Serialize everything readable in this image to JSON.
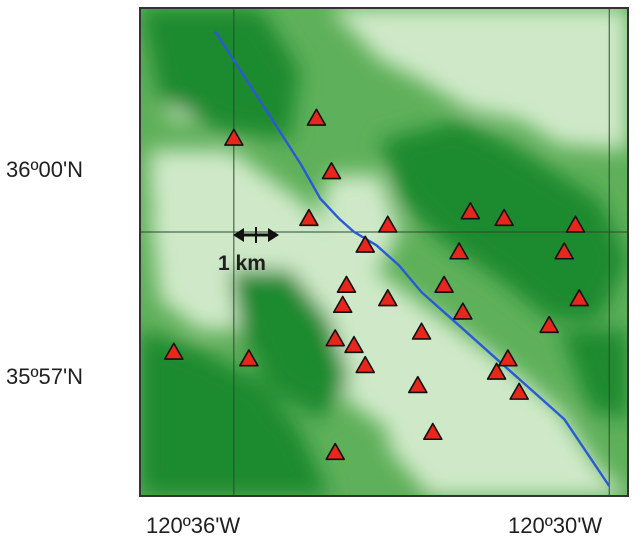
{
  "labels": {
    "lat_north": "36º00'N",
    "lat_south": "35º57'N",
    "lon_west": "120º36'W",
    "lon_east": "120º30'W",
    "scale": "1 km"
  },
  "colors": {
    "terrain_dark": "#1e8a2e",
    "terrain_mid": "#5fb05a",
    "terrain_light": "#cfe9c8",
    "fault": "#2a5ad6",
    "station_fill": "#e8261c",
    "station_stroke": "#111111",
    "grid": "#2c4a30"
  },
  "stations": [
    {
      "lon": -120.6,
      "lat": 36.014
    },
    {
      "lon": -120.578,
      "lat": 36.017
    },
    {
      "lon": -120.574,
      "lat": 36.009
    },
    {
      "lon": -120.58,
      "lat": 36.002
    },
    {
      "lon": -120.559,
      "lat": 36.001
    },
    {
      "lon": -120.565,
      "lat": 35.998
    },
    {
      "lon": -120.537,
      "lat": 36.003
    },
    {
      "lon": -120.528,
      "lat": 36.002
    },
    {
      "lon": -120.509,
      "lat": 36.001
    },
    {
      "lon": -120.54,
      "lat": 35.997
    },
    {
      "lon": -120.512,
      "lat": 35.997
    },
    {
      "lon": -120.57,
      "lat": 35.992
    },
    {
      "lon": -120.544,
      "lat": 35.992
    },
    {
      "lon": -120.559,
      "lat": 35.99
    },
    {
      "lon": -120.539,
      "lat": 35.988
    },
    {
      "lon": -120.55,
      "lat": 35.985
    },
    {
      "lon": -120.508,
      "lat": 35.99
    },
    {
      "lon": -120.571,
      "lat": 35.989
    },
    {
      "lon": -120.516,
      "lat": 35.986
    },
    {
      "lon": -120.573,
      "lat": 35.984
    },
    {
      "lon": -120.616,
      "lat": 35.982
    },
    {
      "lon": -120.596,
      "lat": 35.981
    },
    {
      "lon": -120.568,
      "lat": 35.983
    },
    {
      "lon": -120.527,
      "lat": 35.981
    },
    {
      "lon": -120.565,
      "lat": 35.98
    },
    {
      "lon": -120.551,
      "lat": 35.977
    },
    {
      "lon": -120.53,
      "lat": 35.979
    },
    {
      "lon": -120.524,
      "lat": 35.976
    },
    {
      "lon": -120.547,
      "lat": 35.97
    },
    {
      "lon": -120.573,
      "lat": 35.967
    }
  ],
  "fault_trace": [
    [
      -120.605,
      36.03
    ],
    [
      -120.59,
      36.017
    ],
    [
      -120.582,
      36.01
    ],
    [
      -120.577,
      36.005
    ],
    [
      -120.572,
      36.002
    ],
    [
      -120.568,
      36.0
    ],
    [
      -120.562,
      35.998
    ],
    [
      -120.556,
      35.995
    ],
    [
      -120.55,
      35.991
    ],
    [
      -120.544,
      35.988
    ],
    [
      -120.538,
      35.985
    ],
    [
      -120.532,
      35.982
    ],
    [
      -120.526,
      35.979
    ],
    [
      -120.52,
      35.976
    ],
    [
      -120.512,
      35.972
    ],
    [
      -120.5,
      35.962
    ]
  ]
}
